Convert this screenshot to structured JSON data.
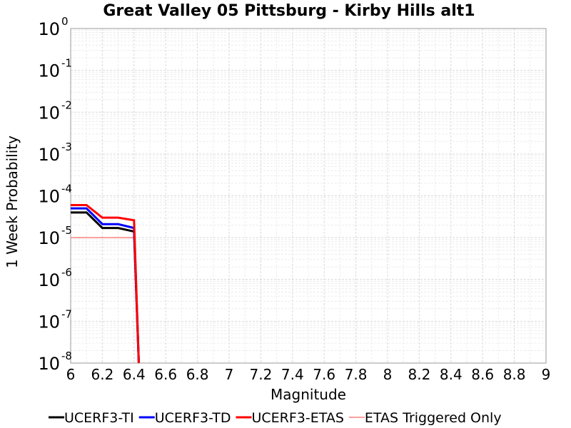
{
  "chart_data": {
    "type": "line",
    "title": "Great Valley 05 Pittsburg - Kirby Hills alt1",
    "xlabel": "Magnitude",
    "ylabel": "1 Week Probability",
    "xlim": [
      6,
      9
    ],
    "ylim_log10": [
      -8,
      0
    ],
    "y_scale": "log",
    "grid": true,
    "legend_position": "bottom",
    "x_ticks": [
      "6",
      "6.2",
      "6.4",
      "6.6",
      "6.8",
      "7",
      "7.2",
      "7.4",
      "7.6",
      "7.8",
      "8",
      "8.2",
      "8.4",
      "8.6",
      "8.8",
      "9"
    ],
    "y_ticks": [
      {
        "base": "10",
        "exp": "0"
      },
      {
        "base": "10",
        "exp": "-1"
      },
      {
        "base": "10",
        "exp": "-2"
      },
      {
        "base": "10",
        "exp": "-3"
      },
      {
        "base": "10",
        "exp": "-4"
      },
      {
        "base": "10",
        "exp": "-5"
      },
      {
        "base": "10",
        "exp": "-6"
      },
      {
        "base": "10",
        "exp": "-7"
      },
      {
        "base": "10",
        "exp": "-8"
      }
    ],
    "series": [
      {
        "name": "UCERF3-TI",
        "color": "#000000",
        "x": [
          6.0,
          6.1,
          6.2,
          6.3,
          6.4,
          6.43
        ],
        "y": [
          4e-05,
          4e-05,
          1.7e-05,
          1.7e-05,
          1.4e-05,
          1e-08
        ]
      },
      {
        "name": "UCERF3-TD",
        "color": "#0000ff",
        "x": [
          6.0,
          6.1,
          6.2,
          6.3,
          6.4,
          6.43
        ],
        "y": [
          5e-05,
          5e-05,
          2.1e-05,
          2.1e-05,
          1.7e-05,
          1e-08
        ]
      },
      {
        "name": "UCERF3-ETAS",
        "color": "#ff0000",
        "x": [
          6.0,
          6.1,
          6.2,
          6.3,
          6.4,
          6.43
        ],
        "y": [
          6e-05,
          6e-05,
          3e-05,
          3e-05,
          2.6e-05,
          1e-08
        ]
      },
      {
        "name": "ETAS Triggered Only",
        "color": "#ff6666",
        "x": [
          6.0,
          6.4
        ],
        "y": [
          1e-05,
          1e-05
        ]
      }
    ]
  }
}
